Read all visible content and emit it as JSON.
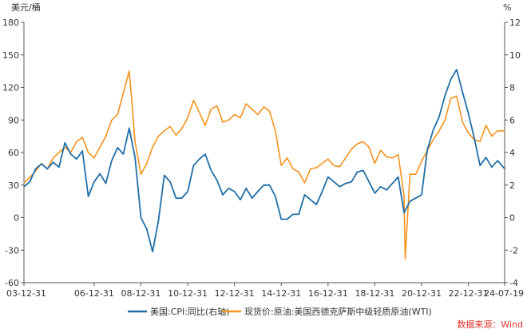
{
  "chart_data": {
    "type": "line",
    "left_axis": {
      "unit_label": "美元/桶",
      "ticks": [
        180,
        150,
        120,
        90,
        60,
        30,
        0,
        -30,
        -60
      ],
      "range": [
        -60,
        180
      ]
    },
    "right_axis": {
      "unit_label": "%",
      "ticks": [
        12,
        10,
        8,
        6,
        4,
        2,
        0,
        -2,
        -4
      ],
      "range": [
        -4,
        12
      ]
    },
    "x_ticks": [
      "03-12-31",
      "06-12-31",
      "08-12-31",
      "10-12-31",
      "12-12-31",
      "14-12-31",
      "16-12-31",
      "18-12-31",
      "20-12-31",
      "22-12-31",
      "24-07-19"
    ],
    "x_range": [
      2004.0,
      2024.55
    ],
    "x_tick_positions": [
      2004.0,
      2007.0,
      2009.0,
      2011.0,
      2013.0,
      2015.0,
      2017.0,
      2019.0,
      2021.0,
      2023.0,
      2024.55
    ],
    "series": [
      {
        "name": "美国:CPI:同比(右轴)",
        "axis": "right",
        "color": "#1f6fa6",
        "x": [
          2004.0,
          2004.25,
          2004.5,
          2004.75,
          2005.0,
          2005.25,
          2005.5,
          2005.75,
          2006.0,
          2006.25,
          2006.5,
          2006.75,
          2007.0,
          2007.25,
          2007.5,
          2007.75,
          2008.0,
          2008.25,
          2008.5,
          2008.75,
          2009.0,
          2009.25,
          2009.5,
          2009.75,
          2010.0,
          2010.25,
          2010.5,
          2010.75,
          2011.0,
          2011.25,
          2011.5,
          2011.75,
          2012.0,
          2012.25,
          2012.5,
          2012.75,
          2013.0,
          2013.25,
          2013.5,
          2013.75,
          2014.0,
          2014.25,
          2014.5,
          2014.75,
          2015.0,
          2015.25,
          2015.5,
          2015.75,
          2016.0,
          2016.25,
          2016.5,
          2016.75,
          2017.0,
          2017.25,
          2017.5,
          2017.75,
          2018.0,
          2018.25,
          2018.5,
          2018.75,
          2019.0,
          2019.25,
          2019.5,
          2019.75,
          2020.0,
          2020.25,
          2020.5,
          2020.75,
          2021.0,
          2021.25,
          2021.5,
          2021.75,
          2022.0,
          2022.25,
          2022.5,
          2022.75,
          2023.0,
          2023.25,
          2023.5,
          2023.75,
          2024.0,
          2024.25,
          2024.55
        ],
        "values": [
          1.9,
          2.2,
          3.0,
          3.3,
          3.0,
          3.4,
          3.1,
          4.6,
          3.9,
          3.6,
          4.1,
          1.3,
          2.2,
          2.7,
          2.1,
          3.5,
          4.3,
          3.9,
          5.5,
          3.7,
          0.0,
          -0.7,
          -2.1,
          -0.2,
          2.6,
          2.2,
          1.2,
          1.2,
          1.6,
          3.2,
          3.6,
          3.9,
          2.9,
          2.3,
          1.4,
          1.8,
          1.6,
          1.1,
          1.8,
          1.2,
          1.6,
          2.0,
          2.0,
          1.3,
          -0.1,
          -0.1,
          0.2,
          0.2,
          1.4,
          1.1,
          0.8,
          1.6,
          2.5,
          2.2,
          1.9,
          2.1,
          2.2,
          2.8,
          2.9,
          2.2,
          1.5,
          1.9,
          1.7,
          2.1,
          2.5,
          0.3,
          1.0,
          1.2,
          1.4,
          4.2,
          5.4,
          6.2,
          7.5,
          8.5,
          9.1,
          7.7,
          6.4,
          4.9,
          3.2,
          3.7,
          3.1,
          3.5,
          3.0
        ]
      },
      {
        "name": "现货价:原油:美国西德克萨斯中级轻质原油(WTI)",
        "axis": "left",
        "color": "#f5921e",
        "x": [
          2004.0,
          2004.25,
          2004.5,
          2004.75,
          2005.0,
          2005.25,
          2005.5,
          2005.75,
          2006.0,
          2006.25,
          2006.5,
          2006.75,
          2007.0,
          2007.25,
          2007.5,
          2007.75,
          2008.0,
          2008.25,
          2008.5,
          2008.6,
          2008.75,
          2009.0,
          2009.25,
          2009.5,
          2009.75,
          2010.0,
          2010.25,
          2010.5,
          2010.75,
          2011.0,
          2011.25,
          2011.5,
          2011.75,
          2012.0,
          2012.25,
          2012.5,
          2012.75,
          2013.0,
          2013.25,
          2013.5,
          2013.75,
          2014.0,
          2014.25,
          2014.5,
          2014.75,
          2015.0,
          2015.25,
          2015.5,
          2015.75,
          2016.0,
          2016.25,
          2016.5,
          2016.75,
          2017.0,
          2017.25,
          2017.5,
          2017.75,
          2018.0,
          2018.25,
          2018.5,
          2018.75,
          2019.0,
          2019.25,
          2019.5,
          2019.75,
          2020.0,
          2020.25,
          2020.3,
          2020.5,
          2020.75,
          2021.0,
          2021.25,
          2021.5,
          2021.75,
          2022.0,
          2022.25,
          2022.5,
          2022.75,
          2023.0,
          2023.25,
          2023.5,
          2023.75,
          2024.0,
          2024.25,
          2024.55
        ],
        "values": [
          32,
          37,
          43,
          50,
          45,
          55,
          60,
          65,
          60,
          70,
          74,
          60,
          55,
          65,
          75,
          90,
          95,
          115,
          135,
          110,
          70,
          40,
          50,
          65,
          75,
          80,
          84,
          76,
          82,
          92,
          108,
          97,
          85,
          100,
          103,
          88,
          90,
          95,
          92,
          105,
          100,
          95,
          102,
          98,
          80,
          48,
          55,
          45,
          42,
          32,
          45,
          46,
          50,
          54,
          48,
          47,
          55,
          63,
          68,
          70,
          65,
          50,
          62,
          56,
          55,
          58,
          20,
          -38,
          40,
          40,
          52,
          62,
          72,
          80,
          90,
          110,
          112,
          88,
          78,
          72,
          70,
          85,
          75,
          80,
          80
        ]
      }
    ],
    "legend": {
      "placement": "bottom",
      "items": [
        "美国:CPI:同比(右轴)",
        "现货价:原油:美国西德克萨斯中级轻质原油(WTI)"
      ]
    },
    "grid": false
  },
  "source_label": "数据来源：Wind"
}
